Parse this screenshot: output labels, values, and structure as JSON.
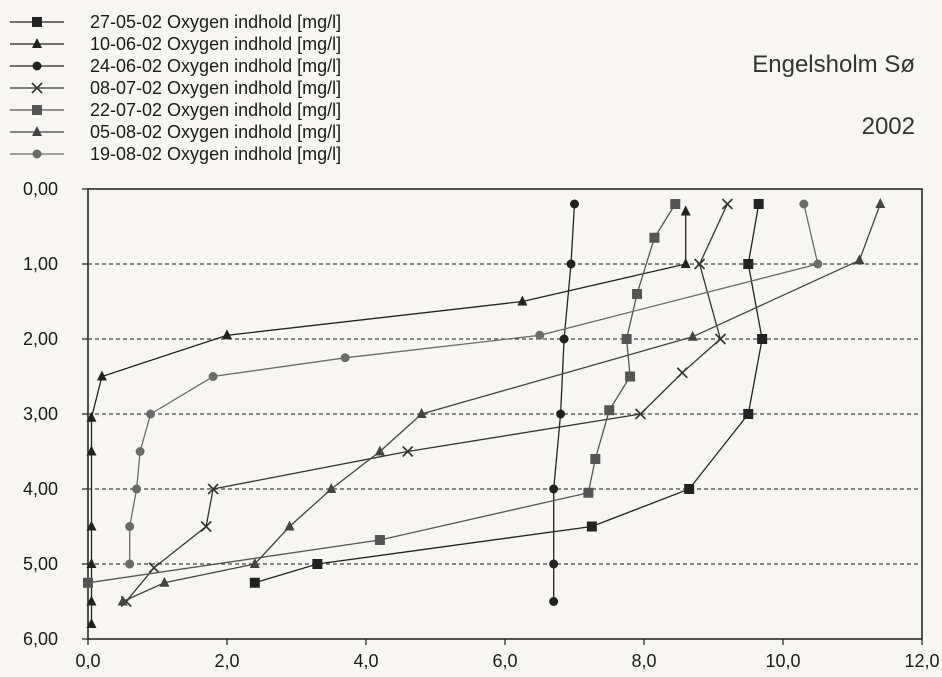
{
  "chart_data": {
    "type": "line",
    "title": "Engelsholm Sø",
    "subtitle": "2002",
    "xlabel": "",
    "ylabel": "",
    "xlim": [
      0,
      12
    ],
    "ylim": [
      6,
      0
    ],
    "y_inverted": true,
    "x_ticks": [
      "0,0",
      "2,0",
      "4,0",
      "6,0",
      "8,0",
      "10,0",
      "12,0"
    ],
    "y_ticks": [
      "0,00",
      "1,00",
      "2,00",
      "3,00",
      "4,00",
      "5,00",
      "6,00"
    ],
    "grid": "horizontal dashed at 1,00–5,00",
    "legend_position": "top-left",
    "series": [
      {
        "name": "27-05-02 Oxygen indhold [mg/l]",
        "marker": "square",
        "color": "#222222",
        "points": [
          [
            9.65,
            0.2
          ],
          [
            9.5,
            1.0
          ],
          [
            9.7,
            2.0
          ],
          [
            9.5,
            3.0
          ],
          [
            8.65,
            4.0
          ],
          [
            7.25,
            4.5
          ],
          [
            3.3,
            5.0
          ],
          [
            2.4,
            5.25
          ]
        ]
      },
      {
        "name": "10-06-02 Oxygen indhold [mg/l]",
        "marker": "triangle",
        "color": "#222222",
        "points": [
          [
            8.6,
            0.3
          ],
          [
            8.6,
            1.0
          ],
          [
            6.25,
            1.5
          ],
          [
            2.0,
            1.95
          ],
          [
            0.2,
            2.5
          ],
          [
            0.05,
            3.05
          ],
          [
            0.05,
            3.5
          ],
          [
            0.05,
            4.5
          ],
          [
            0.05,
            5.0
          ],
          [
            0.05,
            5.5
          ],
          [
            0.05,
            5.8
          ]
        ]
      },
      {
        "name": "24-06-02 Oxygen indhold [mg/l]",
        "marker": "circle",
        "color": "#222222",
        "points": [
          [
            7.0,
            0.2
          ],
          [
            6.95,
            1.0
          ],
          [
            6.85,
            2.0
          ],
          [
            6.8,
            3.0
          ],
          [
            6.7,
            4.0
          ],
          [
            6.7,
            5.0
          ],
          [
            6.7,
            5.5
          ]
        ]
      },
      {
        "name": "08-07-02 Oxygen indhold [mg/l]",
        "marker": "x",
        "color": "#333333",
        "points": [
          [
            9.2,
            0.2
          ],
          [
            8.8,
            1.0
          ],
          [
            9.1,
            2.0
          ],
          [
            8.55,
            2.45
          ],
          [
            7.95,
            3.0
          ],
          [
            4.6,
            3.5
          ],
          [
            1.8,
            4.0
          ],
          [
            1.7,
            4.5
          ],
          [
            0.95,
            5.05
          ],
          [
            0.55,
            5.5
          ]
        ]
      },
      {
        "name": "22-07-02 Oxygen indhold [mg/l]",
        "marker": "square",
        "color": "#555555",
        "points": [
          [
            8.45,
            0.2
          ],
          [
            8.15,
            0.65
          ],
          [
            7.9,
            1.4
          ],
          [
            7.75,
            2.0
          ],
          [
            7.8,
            2.5
          ],
          [
            7.5,
            2.95
          ],
          [
            7.3,
            3.6
          ],
          [
            7.2,
            4.05
          ],
          [
            4.2,
            4.68
          ],
          [
            0.0,
            5.25
          ]
        ]
      },
      {
        "name": "05-08-02 Oxygen indhold [mg/l]",
        "marker": "triangle",
        "color": "#444444",
        "points": [
          [
            11.4,
            0.2
          ],
          [
            11.1,
            0.95
          ],
          [
            8.7,
            1.97
          ],
          [
            4.8,
            3.0
          ],
          [
            4.2,
            3.5
          ],
          [
            3.5,
            4.0
          ],
          [
            2.9,
            4.5
          ],
          [
            2.4,
            5.0
          ],
          [
            1.1,
            5.25
          ],
          [
            0.5,
            5.5
          ]
        ]
      },
      {
        "name": "19-08-02 Oxygen indhold [mg/l]",
        "marker": "circle",
        "color": "#6a6a6a",
        "points": [
          [
            10.3,
            0.2
          ],
          [
            10.5,
            1.0
          ],
          [
            6.5,
            1.95
          ],
          [
            3.7,
            2.25
          ],
          [
            1.8,
            2.5
          ],
          [
            0.9,
            3.0
          ],
          [
            0.75,
            3.5
          ],
          [
            0.7,
            4.0
          ],
          [
            0.6,
            4.5
          ],
          [
            0.6,
            5.0
          ]
        ]
      }
    ]
  }
}
